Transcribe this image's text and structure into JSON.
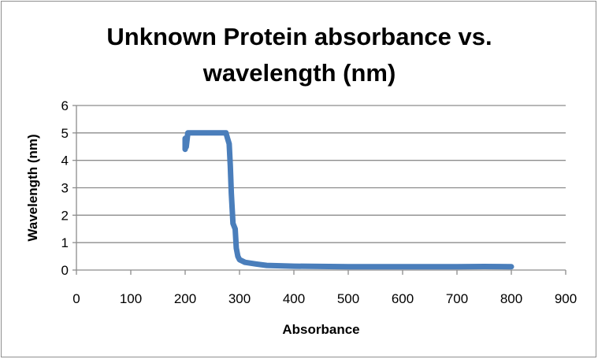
{
  "chart_data": {
    "type": "line",
    "title_lines": [
      "Unknown Protein absorbance vs.",
      "wavelength (nm)"
    ],
    "xlabel": "Absorbance",
    "ylabel": "Wavelength (nm)",
    "xlim": [
      0,
      900
    ],
    "ylim": [
      0,
      6
    ],
    "xticks": [
      0,
      100,
      200,
      300,
      400,
      500,
      600,
      700,
      800,
      900
    ],
    "yticks": [
      0,
      1,
      2,
      3,
      4,
      5,
      6
    ],
    "grid": "horizontal",
    "legend": "none",
    "series_color": "#4a7ebb",
    "x": [
      200,
      200,
      201,
      202,
      205,
      240,
      275,
      278,
      281,
      283,
      285,
      288,
      290,
      292,
      294,
      297,
      300,
      310,
      330,
      350,
      400,
      500,
      600,
      700,
      750,
      800
    ],
    "y": [
      4.8,
      4.4,
      4.6,
      4.5,
      5.0,
      5.0,
      5.0,
      4.8,
      4.6,
      3.8,
      2.8,
      1.7,
      1.6,
      1.5,
      0.8,
      0.5,
      0.38,
      0.28,
      0.22,
      0.17,
      0.14,
      0.12,
      0.12,
      0.12,
      0.13,
      0.12
    ]
  }
}
